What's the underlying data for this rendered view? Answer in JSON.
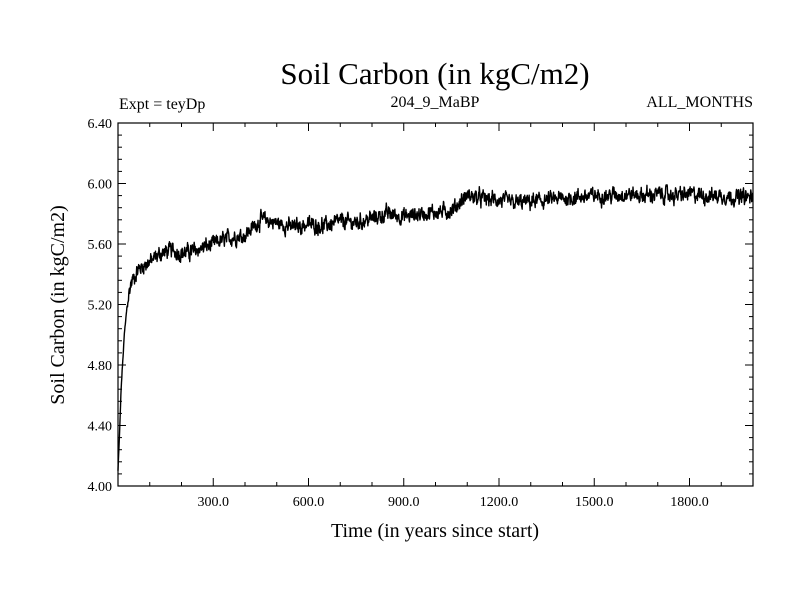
{
  "chart_data": {
    "type": "line",
    "title": "Soil Carbon (in kgC/m2)",
    "experiment_label": "Expt = teyDp",
    "subtitle_center": "204_9_MaBP",
    "subtitle_right": "ALL_MONTHS",
    "xlabel": "Time (in years since start)",
    "ylabel": "Soil Carbon (in kgC/m2)",
    "xlim": [
      0,
      2000
    ],
    "ylim": [
      4.0,
      6.4
    ],
    "x_ticks": [
      300,
      600,
      900,
      1200,
      1500,
      1800
    ],
    "x_tick_labels": [
      "300.0",
      "600.0",
      "900.0",
      "1200.0",
      "1500.0",
      "1800.0"
    ],
    "y_ticks": [
      4.0,
      4.4,
      4.8,
      5.2,
      5.6,
      6.0,
      6.4
    ],
    "y_tick_labels": [
      "4.00",
      "4.40",
      "4.80",
      "5.20",
      "5.60",
      "6.00",
      "6.40"
    ],
    "grid": false,
    "line_color": "#000000",
    "series": [
      {
        "name": "Soil Carbon",
        "anchors_x": [
          0,
          5,
          10,
          20,
          30,
          40,
          50,
          60,
          80,
          100,
          130,
          150,
          170,
          200,
          230,
          260,
          300,
          350,
          400,
          450,
          460,
          500,
          550,
          600,
          650,
          700,
          750,
          800,
          850,
          900,
          950,
          1000,
          1050,
          1100,
          1150,
          1200,
          1250,
          1300,
          1350,
          1400,
          1450,
          1500,
          1550,
          1600,
          1650,
          1700,
          1750,
          1800,
          1850,
          1900,
          1950,
          2000
        ],
        "anchors_y": [
          4.1,
          4.35,
          4.65,
          5.0,
          5.22,
          5.33,
          5.38,
          5.42,
          5.46,
          5.48,
          5.53,
          5.55,
          5.56,
          5.54,
          5.55,
          5.57,
          5.6,
          5.64,
          5.66,
          5.76,
          5.76,
          5.74,
          5.71,
          5.73,
          5.72,
          5.75,
          5.74,
          5.77,
          5.8,
          5.78,
          5.8,
          5.81,
          5.82,
          5.92,
          5.9,
          5.89,
          5.87,
          5.88,
          5.89,
          5.9,
          5.91,
          5.92,
          5.92,
          5.93,
          5.92,
          5.93,
          5.92,
          5.93,
          5.92,
          5.92,
          5.91,
          5.91
        ],
        "noise_amplitude": 0.05
      }
    ]
  }
}
